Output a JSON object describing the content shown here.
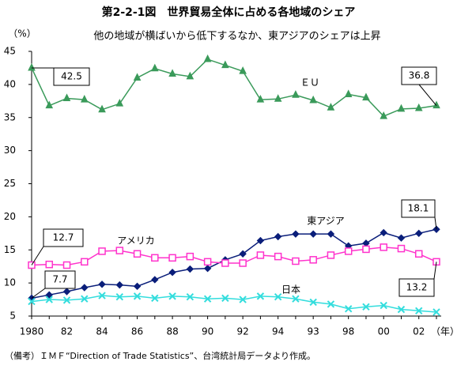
{
  "chart_data": {
    "type": "line",
    "title": "第2-2-1図　世界貿易全体に占める各地域のシェア",
    "subtitle": "他の地域が横ばいから低下するなか、東アジアのシェアは上昇",
    "y_label": "（%）",
    "x_label": "（年）",
    "note": "（備考）ＩＭＦ“Direction of Trade Statistics”、台湾統計局データより作成。",
    "categories": [
      "1980",
      null,
      "82",
      null,
      "84",
      null,
      "86",
      null,
      "88",
      null,
      "90",
      null,
      "92",
      null,
      "94",
      null,
      "93",
      null,
      "98",
      null,
      "00",
      null,
      "02",
      null
    ],
    "ylim": [
      5,
      45
    ],
    "yticks": [
      5,
      10,
      15,
      20,
      25,
      30,
      35,
      40,
      45
    ],
    "grid": false,
    "series": [
      {
        "name": "ＥＵ",
        "color": "#3a9a5a",
        "marker": "triangle",
        "values": [
          42.5,
          36.8,
          37.9,
          37.7,
          36.2,
          37.1,
          41.0,
          42.4,
          41.6,
          41.2,
          43.8,
          42.9,
          42.0,
          37.7,
          37.8,
          38.4,
          37.6,
          36.5,
          38.5,
          38.0,
          35.2,
          36.3,
          36.4,
          36.8
        ]
      },
      {
        "name": "東アジア",
        "color": "#0a1e7a",
        "marker": "diamond",
        "values": [
          7.7,
          8.2,
          8.7,
          9.3,
          9.8,
          9.7,
          9.5,
          10.5,
          11.6,
          12.1,
          12.2,
          13.5,
          14.4,
          16.4,
          17.0,
          17.4,
          17.4,
          17.4,
          15.6,
          16.0,
          17.6,
          16.8,
          17.5,
          18.1
        ]
      },
      {
        "name": "アメリカ",
        "color": "#ff33cc",
        "marker": "square",
        "values": [
          12.7,
          12.8,
          12.7,
          13.2,
          14.8,
          14.9,
          14.4,
          13.8,
          13.8,
          14.0,
          13.2,
          13.0,
          13.0,
          14.2,
          14.0,
          13.3,
          13.5,
          14.2,
          14.8,
          15.1,
          15.4,
          15.2,
          14.4,
          13.2
        ]
      },
      {
        "name": "日本",
        "color": "#33dddd",
        "marker": "x",
        "values": [
          7.2,
          7.5,
          7.4,
          7.6,
          8.1,
          7.9,
          8.0,
          7.7,
          8.0,
          7.9,
          7.6,
          7.7,
          7.5,
          8.0,
          7.9,
          7.6,
          7.1,
          6.8,
          6.1,
          6.4,
          6.6,
          6.0,
          5.8,
          5.6
        ]
      }
    ]
  }
}
